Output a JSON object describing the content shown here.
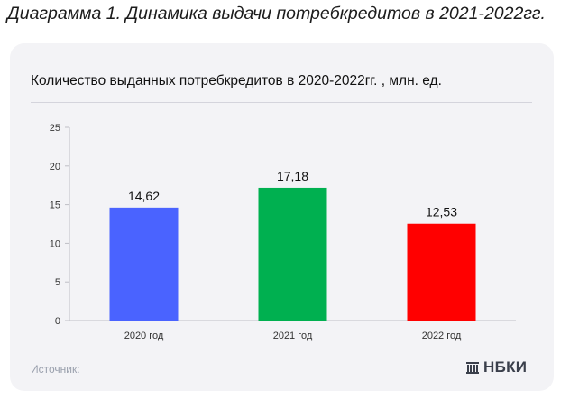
{
  "heading": "Диаграмма 1. Динамика выдачи потребкредитов в 2021-2022гг.",
  "source_label": "Источник:",
  "logo_text": "НБКИ",
  "logo_icon": "nbki-logo-icon",
  "chart_data": {
    "type": "bar",
    "title": "Количество выданных потребкредитов в 2020-2022гг. , млн. ед.",
    "categories": [
      "2020 год",
      "2021 год",
      "2022 год"
    ],
    "values": [
      14.62,
      17.18,
      12.53
    ],
    "value_labels": [
      "14,62",
      "17,18",
      "12,53"
    ],
    "colors": [
      "#4a63ff",
      "#00b050",
      "#ff0000"
    ],
    "ylim": [
      0,
      25
    ],
    "yticks": [
      0,
      5,
      10,
      15,
      20,
      25
    ],
    "grid": false,
    "legend": "none"
  }
}
